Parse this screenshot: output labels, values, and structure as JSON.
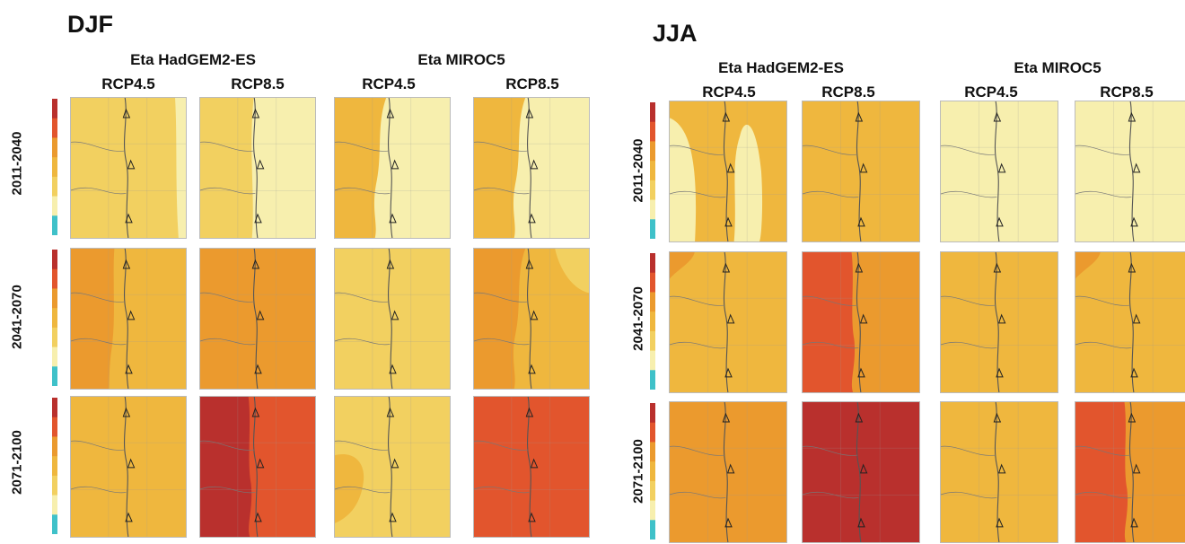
{
  "colors": {
    "c_pale": "#f7efae",
    "c_light": "#f2d060",
    "c_yo": "#efb73e",
    "c_orange": "#eb9a2e",
    "c_dark": "#e2552d",
    "c_red": "#b9302d",
    "c_cyan": "#3fc1c9"
  },
  "seasons": [
    {
      "title": "DJF",
      "models": [
        "Eta HadGEM2-ES",
        "Eta MIROC5"
      ],
      "scenarios": [
        "RCP4.5",
        "RCP8.5",
        "RCP4.5",
        "RCP8.5"
      ],
      "periods": [
        "2011-2040",
        "2041-2070",
        "2071-2100"
      ],
      "panels": [
        [
          {
            "base": "c_light",
            "west": "c_light",
            "east": "c_pale",
            "west_shape": "none",
            "east_shape": "sliver"
          },
          {
            "base": "c_light",
            "west": "c_light",
            "east": "c_pale",
            "west_shape": "none",
            "east_shape": "coast"
          },
          {
            "base": "c_pale",
            "west": "c_yo",
            "east": "c_pale",
            "west_shape": "wide",
            "east_shape": "none"
          },
          {
            "base": "c_pale",
            "west": "c_yo",
            "east": "c_pale",
            "west_shape": "wide",
            "east_shape": "none"
          }
        ],
        [
          {
            "base": "c_yo",
            "west": "c_orange",
            "east": "c_yo",
            "west_shape": "band",
            "east_shape": "none"
          },
          {
            "base": "c_orange",
            "west": "c_orange",
            "east": "c_orange",
            "west_shape": "none",
            "east_shape": "none"
          },
          {
            "base": "c_light",
            "west": "c_yo",
            "east": "c_light",
            "west_shape": "none",
            "east_shape": "none"
          },
          {
            "base": "c_yo",
            "west": "c_orange",
            "east": "c_yo",
            "west_shape": "wide",
            "east_shape": "corner"
          }
        ],
        [
          {
            "base": "c_yo",
            "west": "c_yo",
            "east": "c_yo",
            "west_shape": "none",
            "east_shape": "none"
          },
          {
            "base": "c_dark",
            "west": "c_red",
            "east": "c_dark",
            "west_shape": "coast",
            "east_shape": "none"
          },
          {
            "base": "c_light",
            "west": "c_yo",
            "east": "c_light",
            "west_shape": "blob",
            "east_shape": "none"
          },
          {
            "base": "c_dark",
            "west": "c_dark",
            "east": "c_dark",
            "west_shape": "none",
            "east_shape": "none"
          }
        ]
      ]
    },
    {
      "title": "JJA",
      "models": [
        "Eta HadGEM2-ES",
        "Eta MIROC5"
      ],
      "scenarios": [
        "RCP4.5",
        "RCP8.5",
        "RCP4.5",
        "RCP8.5"
      ],
      "periods": [
        "2011-2040",
        "2041-2070",
        "2071-2100"
      ],
      "panels": [
        [
          {
            "base": "c_yo",
            "west": "c_pale",
            "east": "c_yo",
            "west_shape": "lobe",
            "east_shape": "none"
          },
          {
            "base": "c_yo",
            "west": "c_yo",
            "east": "c_yo",
            "west_shape": "none",
            "east_shape": "none"
          },
          {
            "base": "c_pale",
            "west": "c_pale",
            "east": "c_pale",
            "west_shape": "none",
            "east_shape": "none"
          },
          {
            "base": "c_pale",
            "west": "c_pale",
            "east": "c_pale",
            "west_shape": "none",
            "east_shape": "none"
          }
        ],
        [
          {
            "base": "c_yo",
            "west": "c_orange",
            "east": "c_yo",
            "west_shape": "corner",
            "east_shape": "none"
          },
          {
            "base": "c_orange",
            "west": "c_dark",
            "east": "c_orange",
            "west_shape": "coast",
            "east_shape": "none"
          },
          {
            "base": "c_yo",
            "west": "c_yo",
            "east": "c_yo",
            "west_shape": "none",
            "east_shape": "none"
          },
          {
            "base": "c_yo",
            "west": "c_orange",
            "east": "c_yo",
            "west_shape": "corner",
            "east_shape": "none"
          }
        ],
        [
          {
            "base": "c_orange",
            "west": "c_orange",
            "east": "c_orange",
            "west_shape": "none",
            "east_shape": "none"
          },
          {
            "base": "c_red",
            "west": "c_red",
            "east": "c_red",
            "west_shape": "none",
            "east_shape": "none"
          },
          {
            "base": "c_yo",
            "west": "c_yo",
            "east": "c_yo",
            "west_shape": "none",
            "east_shape": "none"
          },
          {
            "base": "c_orange",
            "west": "c_dark",
            "east": "c_orange",
            "west_shape": "coast",
            "east_shape": "none"
          }
        ]
      ]
    }
  ]
}
